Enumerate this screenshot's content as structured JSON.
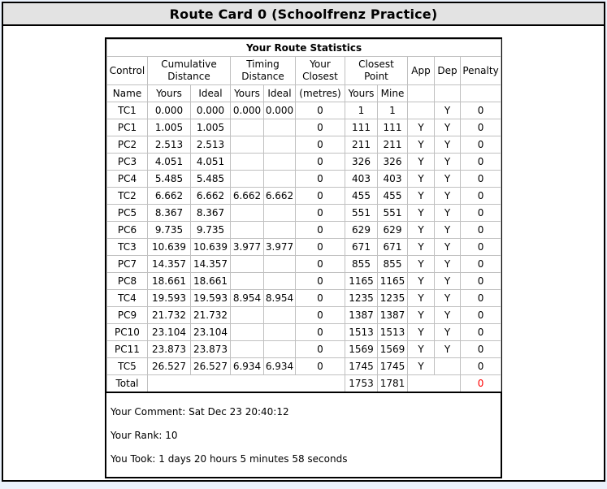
{
  "window": {
    "title": "Route Card 0 (Schoolfrenz Practice)"
  },
  "stats_table": {
    "title": "Your Route Statistics",
    "groups": [
      {
        "label": "Control"
      },
      {
        "label": "Cumulative Distance"
      },
      {
        "label": "Timing Distance"
      },
      {
        "label": "Your Closest"
      },
      {
        "label": "Closest Point"
      },
      {
        "label": "App"
      },
      {
        "label": "Dep"
      },
      {
        "label": "Penalty"
      }
    ],
    "sub_headers": [
      "Name",
      "Yours",
      "Ideal",
      "Yours",
      "Ideal",
      "(metres)",
      "Yours",
      "Mine",
      "",
      "",
      ""
    ],
    "rows": [
      [
        "TC1",
        "0.000",
        "0.000",
        "0.000",
        "0.000",
        "0",
        "1",
        "1",
        "",
        "Y",
        "0"
      ],
      [
        "PC1",
        "1.005",
        "1.005",
        "",
        "",
        "0",
        "111",
        "111",
        "Y",
        "Y",
        "0"
      ],
      [
        "PC2",
        "2.513",
        "2.513",
        "",
        "",
        "0",
        "211",
        "211",
        "Y",
        "Y",
        "0"
      ],
      [
        "PC3",
        "4.051",
        "4.051",
        "",
        "",
        "0",
        "326",
        "326",
        "Y",
        "Y",
        "0"
      ],
      [
        "PC4",
        "5.485",
        "5.485",
        "",
        "",
        "0",
        "403",
        "403",
        "Y",
        "Y",
        "0"
      ],
      [
        "TC2",
        "6.662",
        "6.662",
        "6.662",
        "6.662",
        "0",
        "455",
        "455",
        "Y",
        "Y",
        "0"
      ],
      [
        "PC5",
        "8.367",
        "8.367",
        "",
        "",
        "0",
        "551",
        "551",
        "Y",
        "Y",
        "0"
      ],
      [
        "PC6",
        "9.735",
        "9.735",
        "",
        "",
        "0",
        "629",
        "629",
        "Y",
        "Y",
        "0"
      ],
      [
        "TC3",
        "10.639",
        "10.639",
        "3.977",
        "3.977",
        "0",
        "671",
        "671",
        "Y",
        "Y",
        "0"
      ],
      [
        "PC7",
        "14.357",
        "14.357",
        "",
        "",
        "0",
        "855",
        "855",
        "Y",
        "Y",
        "0"
      ],
      [
        "PC8",
        "18.661",
        "18.661",
        "",
        "",
        "0",
        "1165",
        "1165",
        "Y",
        "Y",
        "0"
      ],
      [
        "TC4",
        "19.593",
        "19.593",
        "8.954",
        "8.954",
        "0",
        "1235",
        "1235",
        "Y",
        "Y",
        "0"
      ],
      [
        "PC9",
        "21.732",
        "21.732",
        "",
        "",
        "0",
        "1387",
        "1387",
        "Y",
        "Y",
        "0"
      ],
      [
        "PC10",
        "23.104",
        "23.104",
        "",
        "",
        "0",
        "1513",
        "1513",
        "Y",
        "Y",
        "0"
      ],
      [
        "PC11",
        "23.873",
        "23.873",
        "",
        "",
        "0",
        "1569",
        "1569",
        "Y",
        "Y",
        "0"
      ],
      [
        "TC5",
        "26.527",
        "26.527",
        "6.934",
        "6.934",
        "0",
        "1745",
        "1745",
        "Y",
        "",
        "0"
      ]
    ],
    "total": {
      "label": "Total",
      "closest_point_yours": "1753",
      "closest_point_mine": "1781",
      "penalty": "0"
    }
  },
  "footer": {
    "comment": "Your Comment: Sat Dec 23 20:40:12",
    "rank": "Your Rank: 10",
    "took": "You Took: 1 days 20 hours 5 minutes 58 seconds"
  },
  "colors": {
    "page_background": "#eaf1fb",
    "titlebar_background": "#e3e3e3",
    "cell_border": "#c0c0c0",
    "frame_border": "#000000",
    "total_penalty_red": "#ff0000"
  }
}
